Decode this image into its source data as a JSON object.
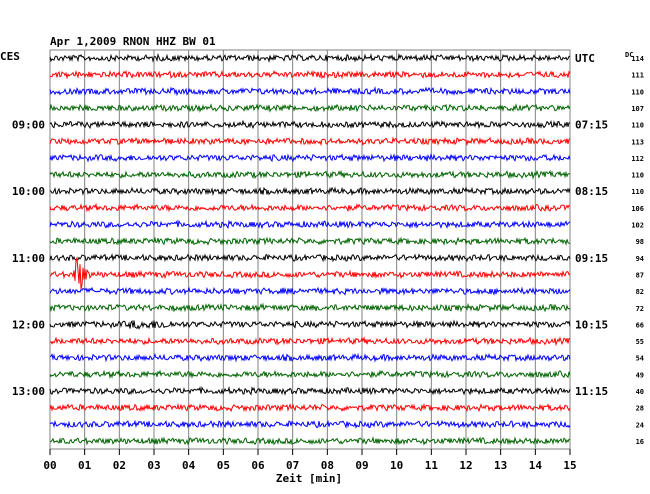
{
  "header": {
    "title": "Apr 1,2009   RNON HHZ BW 01",
    "left_zone": "CES",
    "right_zone": "UTC",
    "dc_label": "DC"
  },
  "chart_data": {
    "type": "line",
    "title": "Apr 1,2009   RNON HHZ BW 01",
    "xlabel": "Zeit [min]",
    "ylabel": "",
    "xlim": [
      0,
      15
    ],
    "x_ticks": [
      "00",
      "01",
      "02",
      "03",
      "04",
      "05",
      "06",
      "07",
      "08",
      "09",
      "10",
      "11",
      "12",
      "13",
      "14",
      "15"
    ],
    "grid": true,
    "trace_count": 24,
    "trace_colors": [
      "#000000",
      "#ff0000",
      "#0000ff",
      "#006400"
    ],
    "left_time_labels": [
      {
        "trace": 4,
        "label": "09:00"
      },
      {
        "trace": 8,
        "label": "10:00"
      },
      {
        "trace": 12,
        "label": "11:00"
      },
      {
        "trace": 16,
        "label": "12:00"
      },
      {
        "trace": 20,
        "label": "13:00"
      }
    ],
    "right_time_labels": [
      {
        "trace": 0,
        "label": "UTC"
      },
      {
        "trace": 4,
        "label": "07:15"
      },
      {
        "trace": 8,
        "label": "08:15"
      },
      {
        "trace": 12,
        "label": "09:15"
      },
      {
        "trace": 16,
        "label": "10:15"
      },
      {
        "trace": 20,
        "label": "11:15"
      }
    ],
    "dc_values": [
      "114",
      "111",
      "110",
      "107",
      "110",
      "113",
      "112",
      "110",
      "110",
      "106",
      "102",
      "98",
      "94",
      "87",
      "82",
      "72",
      "66",
      "55",
      "54",
      "49",
      "40",
      "28",
      "24",
      "16"
    ],
    "events": [
      {
        "trace": 13,
        "minute": 0.7,
        "amplitude": "large"
      },
      {
        "trace": 16,
        "minute": 2.9,
        "amplitude": "small"
      }
    ]
  }
}
